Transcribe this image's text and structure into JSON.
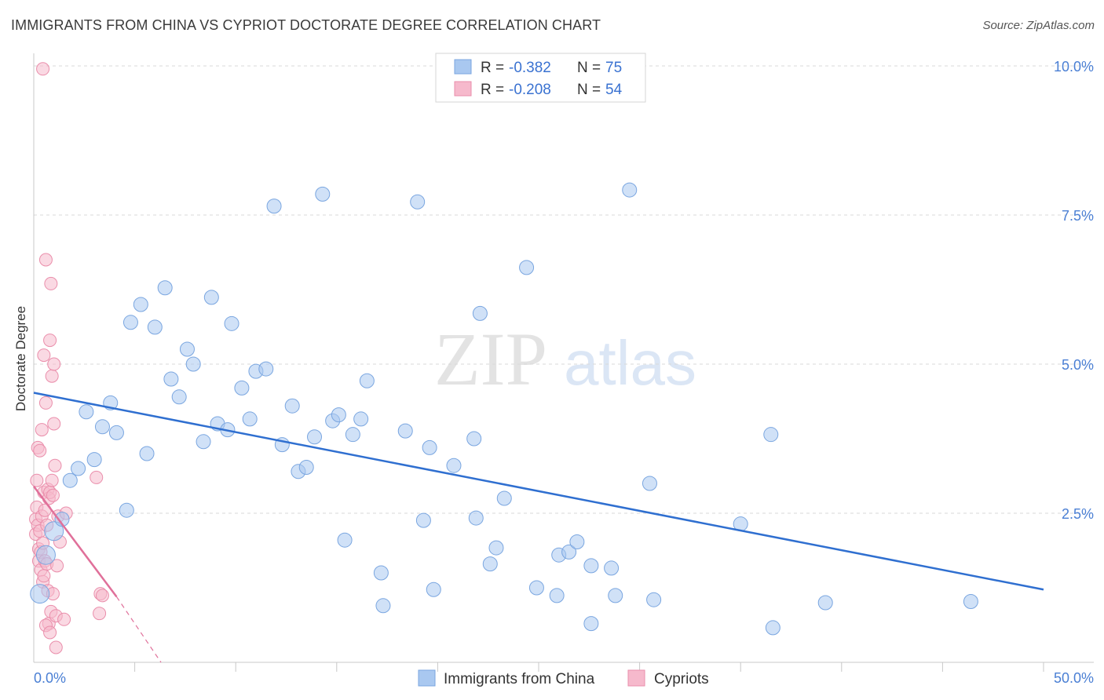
{
  "header": {
    "title": "IMMIGRANTS FROM CHINA VS CYPRIOT DOCTORATE DEGREE CORRELATION CHART",
    "source": "Source: ZipAtlas.com"
  },
  "watermark": {
    "zip": "ZIP",
    "atlas": "atlas"
  },
  "colors": {
    "china_fill": "#a9c8f0",
    "china_stroke": "#7aa6e0",
    "china_line": "#2f6fd0",
    "cyp_fill": "#f6b9cc",
    "cyp_stroke": "#ea8eab",
    "cyp_line": "#e0709a",
    "grid": "#d9d9d9",
    "tick_text": "#4a7fd4"
  },
  "chart_data": {
    "type": "scatter",
    "title": "IMMIGRANTS FROM CHINA VS CYPRIOT DOCTORATE DEGREE CORRELATION CHART",
    "xlabel": "",
    "ylabel": "Doctorate Degree",
    "xlim": [
      0,
      50
    ],
    "ylim": [
      0,
      10.5
    ],
    "x_tick_labels": [
      {
        "value": 0,
        "label": "0.0%"
      },
      {
        "value": 50,
        "label": "50.0%"
      }
    ],
    "y_ticks": [
      {
        "value": 2.5,
        "label": "2.5%"
      },
      {
        "value": 5.0,
        "label": "5.0%"
      },
      {
        "value": 7.5,
        "label": "7.5%"
      },
      {
        "value": 10.0,
        "label": "10.0%"
      }
    ],
    "legend": [
      {
        "key": "china",
        "r_label": "R =",
        "r_value": "-0.382",
        "n_label": "N =",
        "n_value": "75"
      },
      {
        "key": "cyp",
        "r_label": "R =",
        "r_value": "-0.208",
        "n_label": "N =",
        "n_value": "54"
      }
    ],
    "series": [
      {
        "key": "china",
        "name": "Immigrants from China",
        "trend": {
          "x0": 0,
          "y0": 4.52,
          "x1": 50,
          "y1": 1.22
        },
        "points": [
          [
            0.3,
            1.15
          ],
          [
            0.6,
            1.8
          ],
          [
            1.0,
            2.2
          ],
          [
            1.4,
            2.4
          ],
          [
            1.8,
            3.05
          ],
          [
            2.2,
            3.25
          ],
          [
            2.6,
            4.2
          ],
          [
            3.0,
            3.4
          ],
          [
            3.4,
            3.95
          ],
          [
            3.8,
            4.35
          ],
          [
            4.1,
            3.85
          ],
          [
            4.6,
            2.55
          ],
          [
            4.8,
            5.7
          ],
          [
            5.3,
            6.0
          ],
          [
            5.6,
            3.5
          ],
          [
            6.0,
            5.62
          ],
          [
            6.5,
            6.28
          ],
          [
            6.8,
            4.75
          ],
          [
            7.2,
            4.45
          ],
          [
            7.6,
            5.25
          ],
          [
            7.9,
            5.0
          ],
          [
            8.4,
            3.7
          ],
          [
            8.8,
            6.12
          ],
          [
            9.1,
            4.0
          ],
          [
            9.6,
            3.9
          ],
          [
            9.8,
            5.68
          ],
          [
            10.3,
            4.6
          ],
          [
            10.7,
            4.08
          ],
          [
            11.0,
            4.88
          ],
          [
            11.5,
            4.92
          ],
          [
            11.9,
            7.65
          ],
          [
            12.3,
            3.65
          ],
          [
            12.8,
            4.3
          ],
          [
            13.1,
            3.2
          ],
          [
            13.5,
            3.27
          ],
          [
            13.9,
            3.78
          ],
          [
            14.3,
            7.85
          ],
          [
            14.8,
            4.05
          ],
          [
            15.1,
            4.15
          ],
          [
            15.4,
            2.05
          ],
          [
            15.8,
            3.82
          ],
          [
            16.2,
            4.08
          ],
          [
            16.5,
            4.72
          ],
          [
            17.2,
            1.5
          ],
          [
            17.3,
            0.95
          ],
          [
            18.4,
            3.88
          ],
          [
            19.0,
            7.72
          ],
          [
            19.3,
            2.38
          ],
          [
            19.6,
            3.6
          ],
          [
            19.8,
            1.22
          ],
          [
            20.8,
            3.3
          ],
          [
            21.9,
            2.42
          ],
          [
            21.8,
            3.75
          ],
          [
            22.1,
            5.85
          ],
          [
            22.6,
            1.65
          ],
          [
            22.9,
            1.92
          ],
          [
            23.3,
            2.75
          ],
          [
            24.4,
            6.62
          ],
          [
            24.9,
            1.25
          ],
          [
            25.9,
            1.12
          ],
          [
            26.0,
            1.8
          ],
          [
            26.5,
            1.85
          ],
          [
            26.9,
            2.02
          ],
          [
            27.6,
            0.65
          ],
          [
            27.6,
            1.62
          ],
          [
            28.6,
            1.58
          ],
          [
            28.8,
            1.12
          ],
          [
            29.5,
            7.92
          ],
          [
            30.5,
            3.0
          ],
          [
            30.7,
            1.05
          ],
          [
            35.0,
            2.32
          ],
          [
            36.5,
            3.82
          ],
          [
            36.6,
            0.58
          ],
          [
            39.2,
            1.0
          ],
          [
            46.4,
            1.02
          ]
        ]
      },
      {
        "key": "cyp",
        "name": "Cypriots",
        "trend": {
          "x0": 0,
          "y0": 2.95,
          "x1": 4.1,
          "y1": 1.1,
          "dash_x1": 6.3,
          "dash_y1": 0.0
        },
        "points": [
          [
            0.1,
            2.4
          ],
          [
            0.1,
            2.15
          ],
          [
            0.15,
            3.05
          ],
          [
            0.15,
            2.6
          ],
          [
            0.2,
            3.6
          ],
          [
            0.2,
            2.3
          ],
          [
            0.25,
            1.9
          ],
          [
            0.25,
            1.7
          ],
          [
            0.3,
            3.55
          ],
          [
            0.3,
            2.2
          ],
          [
            0.35,
            1.85
          ],
          [
            0.35,
            1.55
          ],
          [
            0.4,
            3.9
          ],
          [
            0.4,
            2.45
          ],
          [
            0.45,
            2.0
          ],
          [
            0.45,
            1.35
          ],
          [
            0.5,
            5.15
          ],
          [
            0.5,
            2.85
          ],
          [
            0.55,
            2.55
          ],
          [
            0.55,
            1.7
          ],
          [
            0.6,
            6.75
          ],
          [
            0.6,
            4.35
          ],
          [
            0.65,
            2.3
          ],
          [
            0.65,
            1.65
          ],
          [
            0.7,
            2.9
          ],
          [
            0.7,
            1.2
          ],
          [
            0.75,
            2.75
          ],
          [
            0.75,
            0.65
          ],
          [
            0.8,
            5.4
          ],
          [
            0.8,
            2.85
          ],
          [
            0.85,
            6.35
          ],
          [
            0.85,
            0.85
          ],
          [
            0.9,
            4.8
          ],
          [
            0.9,
            3.05
          ],
          [
            0.95,
            2.8
          ],
          [
            0.95,
            1.15
          ],
          [
            1.0,
            5.0
          ],
          [
            1.0,
            4.0
          ],
          [
            1.05,
            3.3
          ],
          [
            1.1,
            0.25
          ],
          [
            1.1,
            0.78
          ],
          [
            1.15,
            1.62
          ],
          [
            1.2,
            2.45
          ],
          [
            1.3,
            2.02
          ],
          [
            1.5,
            0.72
          ],
          [
            1.6,
            2.5
          ],
          [
            0.45,
            9.95
          ],
          [
            0.5,
            1.45
          ],
          [
            0.6,
            0.62
          ],
          [
            0.8,
            0.5
          ],
          [
            3.1,
            3.1
          ],
          [
            3.25,
            0.82
          ],
          [
            3.3,
            1.15
          ],
          [
            3.4,
            1.12
          ]
        ]
      }
    ]
  }
}
